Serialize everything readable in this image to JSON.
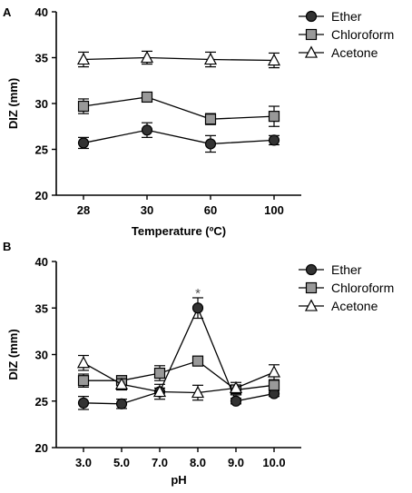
{
  "chart_data": [
    {
      "panel": "A",
      "type": "line",
      "xlabel": "Temperature (ºC)",
      "ylabel": "DIZ (mm)",
      "categories": [
        "28",
        "30",
        "60",
        "100"
      ],
      "ylim": [
        20,
        40
      ],
      "yticks": [
        20,
        25,
        30,
        35,
        40
      ],
      "grid": false,
      "legend": "top-right",
      "annotations": [],
      "series": [
        {
          "name": "Ether",
          "marker": "circle",
          "values": [
            25.7,
            27.1,
            25.6,
            26.0
          ],
          "errors": [
            0.6,
            0.8,
            0.9,
            0.5
          ]
        },
        {
          "name": "Chloroform",
          "marker": "square",
          "values": [
            29.7,
            30.7,
            28.3,
            28.6
          ],
          "errors": [
            0.8,
            0.3,
            0.6,
            1.1
          ]
        },
        {
          "name": "Acetone",
          "marker": "triangle",
          "values": [
            34.8,
            35.0,
            34.8,
            34.7
          ],
          "errors": [
            0.8,
            0.7,
            0.8,
            0.8
          ]
        }
      ]
    },
    {
      "panel": "B",
      "type": "line",
      "xlabel": "pH",
      "ylabel": "DIZ (mm)",
      "categories": [
        "3.0",
        "5.0",
        "7.0",
        "8.0",
        "9.0",
        "10.0"
      ],
      "ylim": [
        20,
        40
      ],
      "yticks": [
        20,
        25,
        30,
        35,
        40
      ],
      "grid": false,
      "legend": "top-right",
      "annotations": [
        {
          "text": "*",
          "category": "8.0",
          "value": 36.5
        }
      ],
      "series": [
        {
          "name": "Ether",
          "marker": "circle",
          "values": [
            24.8,
            24.7,
            26.0,
            35.0,
            25.0,
            25.8
          ],
          "errors": [
            0.7,
            0.5,
            0.4,
            1.1,
            0.3,
            0.3
          ]
        },
        {
          "name": "Chloroform",
          "marker": "square",
          "values": [
            27.2,
            27.2,
            28.0,
            29.3,
            26.2,
            26.7
          ],
          "errors": [
            0.7,
            0.5,
            0.8,
            0.3,
            0.4,
            0.4
          ]
        },
        {
          "name": "Acetone",
          "marker": "triangle",
          "values": [
            29.1,
            26.8,
            26.0,
            25.9,
            26.4,
            28.1
          ],
          "errors": [
            0.8,
            0.6,
            0.8,
            0.8,
            0.6,
            0.8
          ]
        }
      ]
    }
  ]
}
